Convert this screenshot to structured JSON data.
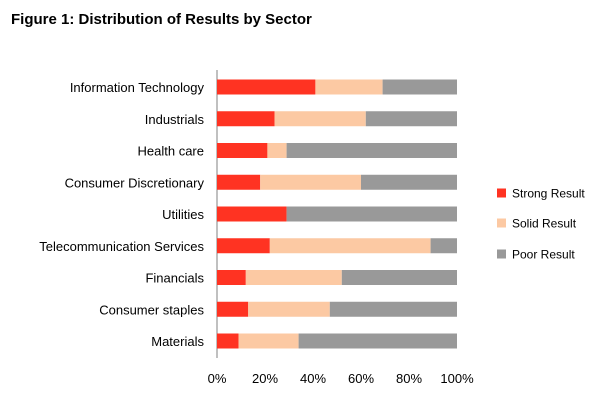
{
  "title": "Figure 1: Distribution of Results by Sector",
  "chart_data": {
    "type": "bar",
    "orientation": "horizontal",
    "stacked": true,
    "title": "Figure 1: Distribution of Results by Sector",
    "xlabel": "",
    "ylabel": "",
    "xlim": [
      0,
      100
    ],
    "x_tick_labels": [
      "0%",
      "20%",
      "40%",
      "60%",
      "80%",
      "100%"
    ],
    "grid": false,
    "legend_position": "right",
    "categories": [
      "Information Technology",
      "Industrials",
      "Health care",
      "Consumer Discretionary",
      "Utilities",
      "Telecommunication Services",
      "Financials",
      "Consumer staples",
      "Materials"
    ],
    "series": [
      {
        "name": "Strong Result",
        "color": "#ff3322",
        "values": [
          41,
          24,
          21,
          18,
          29,
          22,
          12,
          13,
          9
        ]
      },
      {
        "name": "Solid Result",
        "color": "#fcc9a3",
        "values": [
          28,
          38,
          8,
          42,
          0,
          67,
          40,
          34,
          25
        ]
      },
      {
        "name": "Poor Result",
        "color": "#999999",
        "values": [
          31,
          38,
          71,
          40,
          71,
          11,
          48,
          53,
          66
        ]
      }
    ]
  }
}
